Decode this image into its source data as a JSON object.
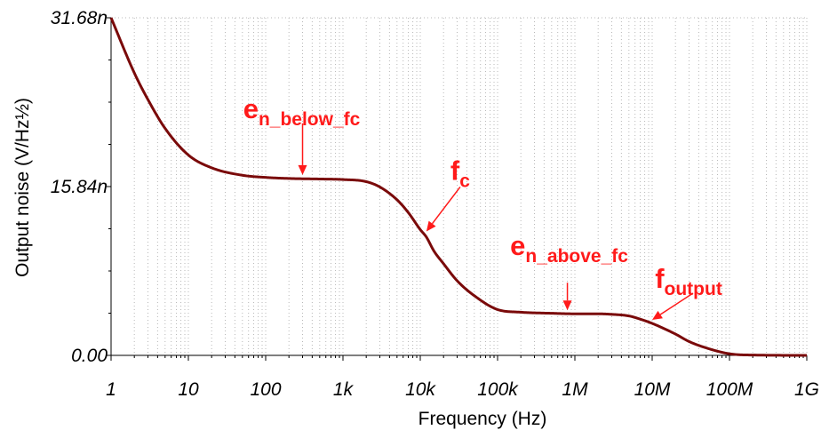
{
  "chart_data": {
    "type": "line",
    "title": "",
    "xlabel": "Frequency (Hz)",
    "ylabel": "Output noise (V/Hz½)",
    "xscale": "log",
    "xlim": [
      1,
      1000000000
    ],
    "ylim": [
      0,
      3.168e-08
    ],
    "grid": "dotted vertical log grid",
    "x_ticks": [
      {
        "value": 1,
        "label": "1"
      },
      {
        "value": 10,
        "label": "10"
      },
      {
        "value": 100,
        "label": "100"
      },
      {
        "value": 1000,
        "label": "1k"
      },
      {
        "value": 10000,
        "label": "10k"
      },
      {
        "value": 100000,
        "label": "100k"
      },
      {
        "value": 1000000,
        "label": "1M"
      },
      {
        "value": 10000000,
        "label": "10M"
      },
      {
        "value": 100000000,
        "label": "100M"
      },
      {
        "value": 1000000000,
        "label": "1G"
      }
    ],
    "y_ticks": [
      {
        "value": 3.168e-08,
        "label": "31.68n"
      },
      {
        "value": 1.584e-08,
        "label": "15.84n"
      },
      {
        "value": 0,
        "label": "0.00"
      }
    ],
    "series": [
      {
        "color": "#7a0a0a",
        "x": [
          1,
          2,
          3,
          5,
          10,
          20,
          50,
          100,
          200,
          500,
          1000,
          2000,
          3000,
          5000,
          7000,
          10000,
          12000,
          15000,
          20000,
          30000,
          50000,
          100000,
          200000,
          500000,
          1000000,
          2000000,
          3000000,
          5000000,
          7000000,
          10000000,
          20000000,
          30000000,
          50000000,
          100000000,
          200000000,
          1000000000
        ],
        "y": [
          3.168e-08,
          2.65e-08,
          2.4e-08,
          2.13e-08,
          1.88e-08,
          1.76e-08,
          1.69e-08,
          1.67e-08,
          1.66e-08,
          1.655e-08,
          1.65e-08,
          1.63e-08,
          1.58e-08,
          1.46e-08,
          1.34e-08,
          1.18e-08,
          1.11e-08,
          9.8e-09,
          8.6e-09,
          7e-09,
          5.6e-09,
          4.3e-09,
          4.05e-09,
          3.95e-09,
          3.9e-09,
          3.9e-09,
          3.85e-09,
          3.7e-09,
          3.4e-09,
          3e-09,
          2e-09,
          1.3e-09,
          7e-10,
          1.5e-10,
          3e-11,
          0
        ]
      }
    ],
    "annotations": [
      {
        "main": "e",
        "sub": "n_below_fc",
        "x": 300,
        "y": 1.66e-08,
        "color": "#ff1a1a"
      },
      {
        "main": "f",
        "sub": "c",
        "x": 12000,
        "y": 1.13e-08,
        "color": "#ff1a1a"
      },
      {
        "main": "e",
        "sub": "n_above_fc",
        "x": 800000,
        "y": 3.9e-09,
        "color": "#ff1a1a"
      },
      {
        "main": "f",
        "sub": "output",
        "x": 10000000,
        "y": 3e-09,
        "color": "#ff1a1a"
      }
    ]
  }
}
